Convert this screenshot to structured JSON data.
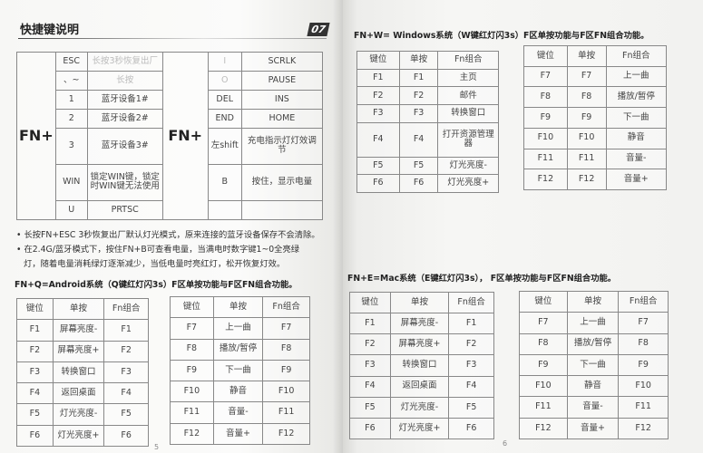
{
  "left_page": {
    "title": "快捷键说明",
    "badge": "07",
    "shortcut_table": {
      "prefix_left": "FN+",
      "prefix_right": "FN+",
      "left_rows": [
        [
          "ESC",
          "长按3秒恢复出厂"
        ],
        [
          "、~",
          "长按"
        ],
        [
          "1",
          "蓝牙设备1#"
        ],
        [
          "2",
          "蓝牙设备2#"
        ],
        [
          "3",
          "蓝牙设备3#"
        ],
        [
          "WIN",
          "锁定WIN键，锁定时WIN键无法使用"
        ],
        [
          "U",
          "PRTSC"
        ]
      ],
      "right_rows": [
        [
          "I",
          "SCRLK"
        ],
        [
          "O",
          "PAUSE"
        ],
        [
          "DEL",
          "INS"
        ],
        [
          "END",
          "HOME"
        ],
        [
          "左shift",
          "充电指示灯灯效调节"
        ],
        [
          "B",
          "按住，显示电量"
        ],
        [
          "",
          ""
        ]
      ]
    },
    "notes": [
      "• 长按FN+ESC 3秒恢复出厂默认灯光模式，原来连接的蓝牙设备保存不会清除。",
      "• 在2.4G/蓝牙模式下，按住FN+B可查看电量，当满电时数字键1~0全亮绿",
      "  灯，随着电量消耗绿灯逐渐减少，当低电量时亮红灯，松开恢复灯效。"
    ],
    "android_heading": "FN+Q=Android系统（Q键红灯闪3s）F区单按功能与F区FN组合功能。",
    "android_table_1": [
      [
        "键位",
        "单按",
        "Fn组合"
      ],
      [
        "F1",
        "屏幕亮度-",
        "F1"
      ],
      [
        "F2",
        "屏幕亮度+",
        "F2"
      ],
      [
        "F3",
        "转换窗口",
        "F3"
      ],
      [
        "F4",
        "返回桌面",
        "F4"
      ],
      [
        "F5",
        "灯光亮度-",
        "F5"
      ],
      [
        "F6",
        "灯光亮度+",
        "F6"
      ]
    ],
    "android_table_2": [
      [
        "键位",
        "单按",
        "Fn组合"
      ],
      [
        "F7",
        "上一曲",
        "F7"
      ],
      [
        "F8",
        "播放/暂停",
        "F8"
      ],
      [
        "F9",
        "下一曲",
        "F9"
      ],
      [
        "F10",
        "静音",
        "F10"
      ],
      [
        "F11",
        "音量-",
        "F11"
      ],
      [
        "F12",
        "音量+",
        "F12"
      ]
    ],
    "page_number": "5"
  },
  "right_page": {
    "windows_heading": "FN+W= Windows系统（W键红灯闪3s）F区单按功能与F区FN组合功能。",
    "windows_table_1": [
      [
        "键位",
        "单按",
        "Fn组合"
      ],
      [
        "F1",
        "F1",
        "主页"
      ],
      [
        "F2",
        "F2",
        "邮件"
      ],
      [
        "F3",
        "F3",
        "转换窗口"
      ],
      [
        "F4",
        "F4",
        "打开资源管理器"
      ],
      [
        "F5",
        "F5",
        "灯光亮度-"
      ],
      [
        "F6",
        "F6",
        "灯光亮度+"
      ]
    ],
    "windows_table_2": [
      [
        "键位",
        "单按",
        "Fn组合"
      ],
      [
        "F7",
        "F7",
        "上一曲"
      ],
      [
        "F8",
        "F8",
        "播放/暂停"
      ],
      [
        "F9",
        "F9",
        "下一曲"
      ],
      [
        "F10",
        "F10",
        "静音"
      ],
      [
        "F11",
        "F11",
        "音量-"
      ],
      [
        "F12",
        "F12",
        "音量+"
      ]
    ],
    "mac_heading": "FN+E=Mac系统（E键红灯闪3s），   F区单按功能与F区FN组合功能。",
    "mac_table_1": [
      [
        "键位",
        "单按",
        "Fn组合"
      ],
      [
        "F1",
        "屏幕亮度-",
        "F1"
      ],
      [
        "F2",
        "屏幕亮度+",
        "F2"
      ],
      [
        "F3",
        "转换窗口",
        "F3"
      ],
      [
        "F4",
        "返回桌面",
        "F4"
      ],
      [
        "F5",
        "灯光亮度-",
        "F5"
      ],
      [
        "F6",
        "灯光亮度+",
        "F6"
      ]
    ],
    "mac_table_2": [
      [
        "键位",
        "单按",
        "Fn组合"
      ],
      [
        "F7",
        "上一曲",
        "F7"
      ],
      [
        "F8",
        "播放/暂停",
        "F8"
      ],
      [
        "F9",
        "下一曲",
        "F9"
      ],
      [
        "F10",
        "静音",
        "F10"
      ],
      [
        "F11",
        "音量-",
        "F11"
      ],
      [
        "F12",
        "音量+",
        "F12"
      ]
    ],
    "page_number": "6"
  }
}
